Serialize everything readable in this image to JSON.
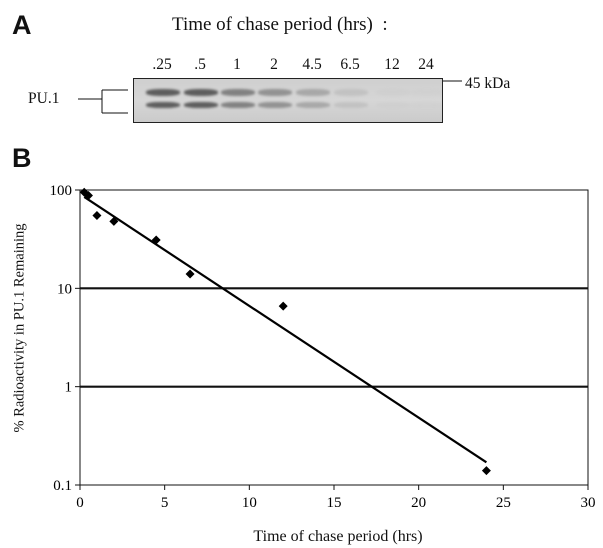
{
  "panel_a": {
    "label": "A",
    "title": "Time of chase period (hrs)  :",
    "lanes": [
      ".25",
      ".5",
      "1",
      "2",
      "4.5",
      "6.5",
      "12",
      "24"
    ],
    "band_intensity": [
      0.85,
      0.85,
      0.7,
      0.62,
      0.5,
      0.3,
      0.1,
      0.04
    ],
    "marker_label": "45 kDa",
    "protein_label": "PU.1"
  },
  "panel_b": {
    "label": "B"
  },
  "chart_data": {
    "type": "scatter",
    "title": "",
    "xlabel": "Time of chase period (hrs)",
    "ylabel": "% Radioactivity in PU.1 Remaining",
    "xlim": [
      0,
      30
    ],
    "ylim": [
      0.1,
      100
    ],
    "y_scale": "log",
    "x_ticks": [
      0,
      5,
      10,
      15,
      20,
      25,
      30
    ],
    "y_ticks": [
      0.1,
      1,
      10,
      100
    ],
    "y_tick_labels": [
      "0.1",
      "1",
      "10",
      "100"
    ],
    "horizontal_gridlines": [
      1,
      10
    ],
    "points": [
      {
        "x": 0.25,
        "y": 95
      },
      {
        "x": 0.5,
        "y": 88
      },
      {
        "x": 1,
        "y": 55
      },
      {
        "x": 2,
        "y": 48
      },
      {
        "x": 4.5,
        "y": 31
      },
      {
        "x": 6.5,
        "y": 14
      },
      {
        "x": 12,
        "y": 6.6
      },
      {
        "x": 24,
        "y": 0.14
      }
    ],
    "fit_line": {
      "x": [
        0.25,
        24
      ],
      "y": [
        85,
        0.17
      ]
    },
    "legend": "none",
    "colors": {
      "marker": "#000000",
      "line": "#000000"
    }
  }
}
